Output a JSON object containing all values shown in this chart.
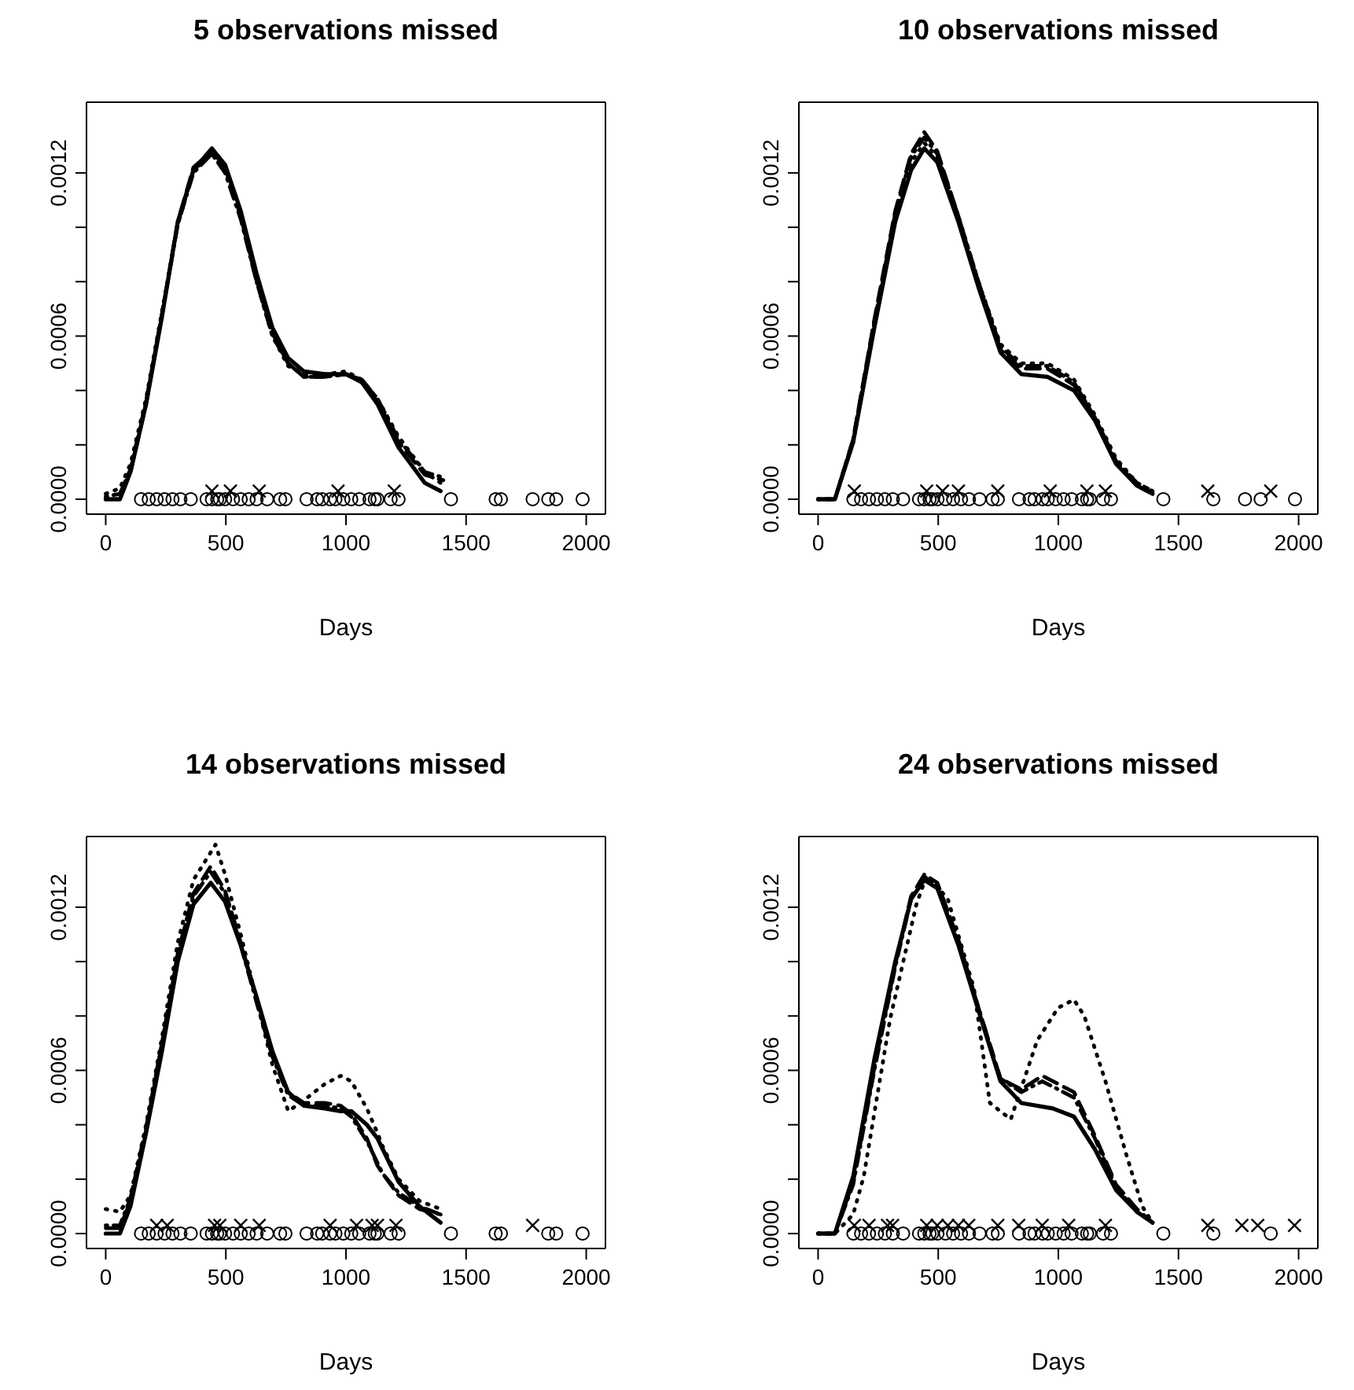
{
  "chart_data": [
    {
      "type": "line",
      "title": "5 observations missed",
      "xlabel": "Days",
      "xlim": [
        -80,
        2080
      ],
      "xticks": [
        0,
        500,
        1000,
        1500,
        2000
      ],
      "ylim": [
        -5.5e-05,
        0.00146
      ],
      "yticks": [
        {
          "value": 0,
          "label": "0.0000"
        },
        {
          "value": 0.0002,
          "label": null
        },
        {
          "value": 0.0004,
          "label": null
        },
        {
          "value": 0.0006,
          "label": "0.0006"
        },
        {
          "value": 0.0008,
          "label": null
        },
        {
          "value": 0.001,
          "label": null
        },
        {
          "value": 0.0012,
          "label": "0.0012"
        }
      ],
      "grid": false,
      "series": [
        {
          "color": "#000000",
          "line_style": "solid",
          "marker": "none",
          "x": [
            0,
            59,
            103,
            168,
            234,
            300,
            365,
            442,
            497,
            562,
            628,
            694,
            759,
            825,
            912,
            1000,
            1066,
            1131,
            1219,
            1328,
            1394
          ],
          "values": [
            0,
            0,
            0.0001,
            0.00035,
            0.00067,
            0.00102,
            0.00121,
            0.00129,
            0.00123,
            0.00106,
            0.00083,
            0.00063,
            0.00052,
            0.00047,
            0.00046,
            0.00046,
            0.00043,
            0.00035,
            0.00019,
            6e-05,
            3e-05
          ]
        },
        {
          "color": "#000000",
          "line_style": "dashed",
          "marker": "none",
          "x": [
            0,
            59,
            103,
            168,
            234,
            300,
            365,
            442,
            497,
            562,
            628,
            694,
            759,
            825,
            912,
            1000,
            1066,
            1131,
            1219,
            1328,
            1405
          ],
          "values": [
            0,
            0,
            0.0001,
            0.00035,
            0.00068,
            0.00102,
            0.00122,
            0.00128,
            0.00122,
            0.00104,
            0.00081,
            0.00061,
            0.0005,
            0.00045,
            0.00045,
            0.00046,
            0.00043,
            0.00036,
            0.00021,
            9e-05,
            7e-05
          ]
        },
        {
          "color": "#000000",
          "line_style": "dashdot",
          "marker": "none",
          "x": [
            0,
            59,
            103,
            168,
            234,
            300,
            365,
            442,
            497,
            562,
            628,
            694,
            759,
            825,
            912,
            1000,
            1066,
            1131,
            1219,
            1328,
            1405
          ],
          "values": [
            1e-05,
            2e-05,
            0.00011,
            0.00036,
            0.00068,
            0.00101,
            0.0012,
            0.00127,
            0.0012,
            0.00103,
            0.0008,
            0.0006,
            0.0005,
            0.00045,
            0.00045,
            0.00046,
            0.00044,
            0.00037,
            0.00022,
            0.0001,
            8e-05
          ]
        },
        {
          "color": "#000000",
          "line_style": "dotted",
          "marker": "none",
          "x": [
            0,
            59,
            103,
            168,
            234,
            300,
            365,
            442,
            497,
            562,
            628,
            694,
            759,
            825,
            912,
            1000,
            1066,
            1131,
            1219,
            1328,
            1394
          ],
          "values": [
            2e-05,
            4e-05,
            0.00013,
            0.00037,
            0.00069,
            0.00101,
            0.00121,
            0.00127,
            0.00121,
            0.00104,
            0.0008,
            0.0006,
            0.00049,
            0.00046,
            0.00046,
            0.00047,
            0.00044,
            0.00037,
            0.00023,
            0.0001,
            6e-05
          ]
        },
        {
          "type": "scatter",
          "color": "#000000",
          "marker": "circle",
          "x": [
            147,
            179,
            212,
            245,
            278,
            311,
            354,
            420,
            442,
            464,
            475,
            497,
            530,
            562,
            595,
            628,
            672,
            726,
            748,
            836,
            880,
            901,
            934,
            956,
            989,
            1022,
            1055,
            1098,
            1120,
            1131,
            1186,
            1219,
            1437,
            1623,
            1645,
            1777,
            1842,
            1875,
            1985
          ],
          "values": [
            0,
            0,
            0,
            0,
            0,
            0,
            0,
            0,
            0,
            0,
            0,
            0,
            0,
            0,
            0,
            0,
            0,
            0,
            0,
            0,
            0,
            0,
            0,
            0,
            0,
            0,
            0,
            0,
            0,
            0,
            0,
            0,
            0,
            0,
            0,
            0,
            0,
            0,
            0
          ]
        },
        {
          "type": "scatter",
          "color": "#000000",
          "marker": "cross",
          "x": [
            442,
            519,
            639,
            967,
            1201
          ],
          "values": [
            3e-05,
            3e-05,
            3e-05,
            3e-05,
            3e-05
          ]
        }
      ]
    },
    {
      "type": "line",
      "title": "10 observations missed",
      "xlabel": "Days",
      "xlim": [
        -80,
        2080
      ],
      "xticks": [
        0,
        500,
        1000,
        1500,
        2000
      ],
      "ylim": [
        -5.5e-05,
        0.00146
      ],
      "yticks": [
        {
          "value": 0,
          "label": "0.0000"
        },
        {
          "value": 0.0002,
          "label": null
        },
        {
          "value": 0.0004,
          "label": null
        },
        {
          "value": 0.0006,
          "label": "0.0006"
        },
        {
          "value": 0.0008,
          "label": null
        },
        {
          "value": 0.001,
          "label": null
        },
        {
          "value": 0.0012,
          "label": "0.0012"
        }
      ],
      "grid": false,
      "series": [
        {
          "color": "#000000",
          "line_style": "solid",
          "marker": "none",
          "x": [
            0,
            70,
            146,
            234,
            321,
            387,
            442,
            496,
            584,
            671,
            759,
            846,
            955,
            1065,
            1152,
            1240,
            1327,
            1392
          ],
          "values": [
            0,
            0,
            0.00021,
            0.00063,
            0.00102,
            0.00121,
            0.00129,
            0.00124,
            0.00102,
            0.00077,
            0.00054,
            0.00046,
            0.00045,
            0.0004,
            0.00029,
            0.00013,
            5e-05,
            2e-05
          ]
        },
        {
          "color": "#000000",
          "line_style": "dashed",
          "marker": "none",
          "x": [
            0,
            70,
            146,
            234,
            321,
            387,
            442,
            496,
            584,
            671,
            759,
            846,
            955,
            1065,
            1152,
            1240,
            1327,
            1392
          ],
          "values": [
            0,
            0,
            0.00022,
            0.00066,
            0.00106,
            0.00127,
            0.00135,
            0.00128,
            0.00104,
            0.00078,
            0.00055,
            0.00048,
            0.00048,
            0.00042,
            0.0003,
            0.00014,
            5e-05,
            2e-05
          ]
        },
        {
          "color": "#000000",
          "line_style": "dashdot",
          "marker": "none",
          "x": [
            0,
            70,
            146,
            234,
            321,
            387,
            442,
            496,
            584,
            671,
            759,
            846,
            955,
            1065,
            1152,
            1240,
            1327,
            1392
          ],
          "values": [
            0,
            0,
            0.00022,
            0.00065,
            0.00105,
            0.00126,
            0.00133,
            0.00127,
            0.00104,
            0.00079,
            0.00056,
            0.00049,
            0.00049,
            0.00043,
            0.0003,
            0.00014,
            6e-05,
            3e-05
          ]
        },
        {
          "color": "#000000",
          "line_style": "dotted",
          "marker": "none",
          "x": [
            0,
            70,
            146,
            234,
            321,
            387,
            442,
            496,
            584,
            671,
            759,
            846,
            955,
            1065,
            1152,
            1240,
            1327,
            1392
          ],
          "values": [
            0,
            0,
            0.00021,
            0.00064,
            0.00104,
            0.00124,
            0.00131,
            0.00126,
            0.00104,
            0.00079,
            0.00057,
            0.0005,
            0.0005,
            0.00044,
            0.00031,
            0.00015,
            6e-05,
            3e-05
          ]
        },
        {
          "type": "scatter",
          "color": "#000000",
          "marker": "circle",
          "x": [
            147,
            179,
            212,
            245,
            278,
            311,
            354,
            420,
            442,
            464,
            475,
            497,
            530,
            562,
            595,
            628,
            672,
            726,
            748,
            836,
            880,
            901,
            934,
            956,
            989,
            1022,
            1055,
            1098,
            1120,
            1131,
            1186,
            1219,
            1437,
            1645,
            1777,
            1842,
            1985
          ],
          "values": [
            0,
            0,
            0,
            0,
            0,
            0,
            0,
            0,
            0,
            0,
            0,
            0,
            0,
            0,
            0,
            0,
            0,
            0,
            0,
            0,
            0,
            0,
            0,
            0,
            0,
            0,
            0,
            0,
            0,
            0,
            0,
            0,
            0,
            0,
            0,
            0,
            0
          ]
        },
        {
          "type": "scatter",
          "color": "#000000",
          "marker": "cross",
          "x": [
            151,
            452,
            518,
            584,
            748,
            966,
            1119,
            1196,
            1622,
            1884
          ],
          "values": [
            3e-05,
            3e-05,
            3e-05,
            3e-05,
            3e-05,
            3e-05,
            3e-05,
            3e-05,
            3e-05,
            3e-05
          ]
        }
      ]
    },
    {
      "type": "line",
      "title": "14 observations missed",
      "xlabel": "Days",
      "xlim": [
        -80,
        2080
      ],
      "xticks": [
        0,
        500,
        1000,
        1500,
        2000
      ],
      "ylim": [
        -5.5e-05,
        0.00146
      ],
      "yticks": [
        {
          "value": 0,
          "label": "0.0000"
        },
        {
          "value": 0.0002,
          "label": null
        },
        {
          "value": 0.0004,
          "label": null
        },
        {
          "value": 0.0006,
          "label": "0.0006"
        },
        {
          "value": 0.0008,
          "label": null
        },
        {
          "value": 0.001,
          "label": null
        },
        {
          "value": 0.0012,
          "label": "0.0012"
        }
      ],
      "grid": false,
      "series": [
        {
          "color": "#000000",
          "line_style": "solid",
          "marker": "none",
          "x": [
            0,
            59,
            103,
            168,
            234,
            300,
            365,
            437,
            497,
            562,
            628,
            694,
            759,
            825,
            912,
            978,
            1022,
            1087,
            1131,
            1153,
            1219,
            1306,
            1394
          ],
          "values": [
            0,
            0,
            0.0001,
            0.00037,
            0.00067,
            0.001,
            0.00121,
            0.00129,
            0.00122,
            0.00106,
            0.00087,
            0.00067,
            0.00052,
            0.00047,
            0.00046,
            0.00045,
            0.00045,
            0.0004,
            0.00035,
            0.00031,
            0.00019,
            0.0001,
            4e-05
          ]
        },
        {
          "color": "#000000",
          "line_style": "dashed",
          "marker": "none",
          "x": [
            0,
            59,
            103,
            168,
            234,
            300,
            365,
            437,
            497,
            562,
            628,
            694,
            759,
            825,
            912,
            978,
            1022,
            1087,
            1131,
            1153,
            1219,
            1306,
            1394
          ],
          "values": [
            2e-05,
            2e-05,
            0.00012,
            0.00038,
            0.00069,
            0.00103,
            0.00125,
            0.00135,
            0.00126,
            0.00107,
            0.00086,
            0.00066,
            0.00052,
            0.00048,
            0.00048,
            0.00047,
            0.00044,
            0.00035,
            0.00025,
            0.00022,
            0.00014,
            9e-05,
            7e-05
          ]
        },
        {
          "color": "#000000",
          "line_style": "dashdot",
          "marker": "none",
          "x": [
            0,
            59,
            103,
            168,
            234,
            300,
            365,
            437,
            497,
            562,
            628,
            694,
            759,
            825,
            912,
            978,
            1022,
            1087,
            1131,
            1153,
            1219,
            1306,
            1394
          ],
          "values": [
            3e-05,
            3e-05,
            0.00013,
            0.00039,
            0.0007,
            0.00103,
            0.00124,
            0.00133,
            0.00125,
            0.00106,
            0.00085,
            0.00065,
            0.00051,
            0.00047,
            0.00047,
            0.00046,
            0.00043,
            0.00034,
            0.00026,
            0.00022,
            0.00015,
            0.0001,
            7e-05
          ]
        },
        {
          "color": "#000000",
          "line_style": "dotted",
          "marker": "none",
          "x": [
            0,
            59,
            103,
            168,
            234,
            300,
            365,
            457,
            497,
            562,
            628,
            694,
            760,
            825,
            912,
            978,
            1022,
            1087,
            1131,
            1153,
            1219,
            1306,
            1394
          ],
          "values": [
            9e-05,
            8e-05,
            0.00014,
            0.0004,
            0.00072,
            0.00107,
            0.0013,
            0.00143,
            0.00132,
            0.0011,
            0.00086,
            0.00062,
            0.00045,
            0.00049,
            0.00055,
            0.00058,
            0.00056,
            0.00046,
            0.00037,
            0.00032,
            0.0002,
            0.00012,
            9e-05
          ]
        },
        {
          "type": "scatter",
          "color": "#000000",
          "marker": "circle",
          "x": [
            147,
            179,
            212,
            245,
            278,
            311,
            354,
            420,
            442,
            464,
            475,
            497,
            530,
            562,
            595,
            628,
            672,
            726,
            748,
            836,
            880,
            901,
            934,
            956,
            989,
            1022,
            1055,
            1098,
            1120,
            1131,
            1186,
            1219,
            1437,
            1623,
            1645,
            1842,
            1875,
            1985
          ],
          "values": [
            0,
            0,
            0,
            0,
            0,
            0,
            0,
            0,
            0,
            0,
            0,
            0,
            0,
            0,
            0,
            0,
            0,
            0,
            0,
            0,
            0,
            0,
            0,
            0,
            0,
            0,
            0,
            0,
            0,
            0,
            0,
            0,
            0,
            0,
            0,
            0,
            0,
            0
          ]
        },
        {
          "type": "scatter",
          "color": "#000000",
          "marker": "cross",
          "x": [
            212,
            256,
            453,
            475,
            562,
            639,
            934,
            1044,
            1109,
            1131,
            1208,
            1777
          ],
          "values": [
            3e-05,
            3e-05,
            3e-05,
            3e-05,
            3e-05,
            3e-05,
            3e-05,
            3e-05,
            3e-05,
            3e-05,
            3e-05,
            3e-05
          ]
        }
      ]
    },
    {
      "type": "line",
      "title": "24 observations missed",
      "xlabel": "Days",
      "xlim": [
        -80,
        2080
      ],
      "xticks": [
        0,
        500,
        1000,
        1500,
        2000
      ],
      "ylim": [
        -5.5e-05,
        0.00146
      ],
      "yticks": [
        {
          "value": 0,
          "label": "0.0000"
        },
        {
          "value": 0.0002,
          "label": null
        },
        {
          "value": 0.0004,
          "label": null
        },
        {
          "value": 0.0006,
          "label": "0.0006"
        },
        {
          "value": 0.0008,
          "label": null
        },
        {
          "value": 0.001,
          "label": null
        },
        {
          "value": 0.0012,
          "label": "0.0012"
        }
      ],
      "grid": false,
      "series": [
        {
          "color": "#000000",
          "line_style": "solid",
          "marker": "none",
          "x": [
            0,
            70,
            146,
            234,
            321,
            387,
            442,
            496,
            584,
            671,
            759,
            846,
            977,
            1065,
            1152,
            1240,
            1327,
            1392
          ],
          "values": [
            0,
            0,
            0.00021,
            0.00064,
            0.001,
            0.00123,
            0.0013,
            0.00127,
            0.00106,
            0.00081,
            0.00056,
            0.00048,
            0.00046,
            0.00043,
            0.00031,
            0.00016,
            8e-05,
            4e-05
          ]
        },
        {
          "color": "#000000",
          "line_style": "dashed",
          "marker": "none",
          "x": [
            0,
            70,
            146,
            234,
            321,
            387,
            442,
            496,
            584,
            671,
            759,
            846,
            933,
            1065,
            1152,
            1240,
            1327,
            1392
          ],
          "values": [
            0,
            0,
            0.00019,
            0.00061,
            0.00099,
            0.00124,
            0.00132,
            0.00129,
            0.00108,
            0.00082,
            0.00057,
            0.00053,
            0.00058,
            0.00052,
            0.00036,
            0.00018,
            9e-05,
            4e-05
          ]
        },
        {
          "color": "#000000",
          "line_style": "dashdot",
          "marker": "none",
          "x": [
            0,
            70,
            146,
            234,
            321,
            387,
            442,
            496,
            584,
            671,
            759,
            846,
            933,
            1065,
            1152,
            1240,
            1327,
            1392
          ],
          "values": [
            0,
            0,
            0.00018,
            0.0006,
            0.00098,
            0.00123,
            0.00131,
            0.00128,
            0.00107,
            0.00082,
            0.00057,
            0.00052,
            0.00056,
            0.0005,
            0.00035,
            0.00017,
            8e-05,
            4e-05
          ]
        },
        {
          "color": "#000000",
          "line_style": "dotted",
          "marker": "none",
          "x": [
            0,
            70,
            146,
            190,
            300,
            409,
            453,
            540,
            649,
            715,
            802,
            912,
            999,
            1065,
            1108,
            1196,
            1283,
            1349,
            1392
          ],
          "values": [
            0,
            0,
            7e-05,
            0.00021,
            0.00079,
            0.00121,
            0.00132,
            0.00123,
            0.0009,
            0.00048,
            0.00042,
            0.00071,
            0.00083,
            0.00086,
            0.0008,
            0.00056,
            0.00029,
            0.0001,
            4e-05
          ]
        },
        {
          "type": "scatter",
          "color": "#000000",
          "marker": "circle",
          "x": [
            147,
            179,
            212,
            245,
            278,
            311,
            354,
            420,
            442,
            464,
            475,
            497,
            530,
            562,
            595,
            628,
            672,
            726,
            748,
            836,
            880,
            901,
            934,
            956,
            989,
            1022,
            1055,
            1098,
            1120,
            1131,
            1186,
            1219,
            1437,
            1645,
            1884
          ],
          "values": [
            0,
            0,
            0,
            0,
            0,
            0,
            0,
            0,
            0,
            0,
            0,
            0,
            0,
            0,
            0,
            0,
            0,
            0,
            0,
            0,
            0,
            0,
            0,
            0,
            0,
            0,
            0,
            0,
            0,
            0,
            0,
            0,
            0,
            0,
            0
          ]
        },
        {
          "type": "scatter",
          "color": "#000000",
          "marker": "cross",
          "x": [
            151,
            212,
            289,
            310,
            452,
            496,
            540,
            584,
            627,
            748,
            835,
            933,
            1043,
            1196,
            1622,
            1764,
            1830,
            1983
          ],
          "values": [
            3e-05,
            3e-05,
            3e-05,
            3e-05,
            3e-05,
            3e-05,
            3e-05,
            3e-05,
            3e-05,
            3e-05,
            3e-05,
            3e-05,
            3e-05,
            3e-05,
            3e-05,
            3e-05,
            3e-05,
            3e-05
          ]
        }
      ]
    }
  ]
}
